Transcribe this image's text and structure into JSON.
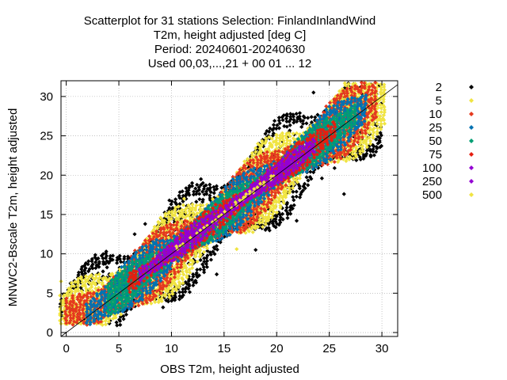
{
  "chart_data": {
    "type": "scatter",
    "title_lines": [
      "Scatterplot for   31 stations Selection: FinlandInlandWind",
      "T2m, height adjusted [deg C]",
      "Period: 20240601-20240630",
      "Used 00,03,...,21 + 00 01 ... 12"
    ],
    "xlabel": "OBS T2m, height adjusted",
    "ylabel": "MNWC2-Bscale T2m, height adjusted",
    "xlim": [
      -0.5,
      31.5
    ],
    "ylim": [
      -0.5,
      32
    ],
    "xticks": [
      0,
      5,
      10,
      15,
      20,
      25,
      30
    ],
    "yticks": [
      0,
      5,
      10,
      15,
      20,
      25,
      30
    ],
    "grid": true,
    "legend_placement": "right",
    "diagonal_line": true,
    "legend": [
      {
        "label": "2",
        "color": "#000000"
      },
      {
        "label": "5",
        "color": "#f0e442"
      },
      {
        "label": "10",
        "color": "#e5391f"
      },
      {
        "label": "25",
        "color": "#0072b2"
      },
      {
        "label": "50",
        "color": "#009e73"
      },
      {
        "label": "75",
        "color": "#e51e10"
      },
      {
        "label": "100",
        "color": "#9400d3"
      },
      {
        "label": "250",
        "color": "#9400d3"
      },
      {
        "label": "500",
        "color": "#f0e442"
      }
    ],
    "density_bands": [
      {
        "label": "2",
        "color": "#000000",
        "center_offset": 0.3,
        "halfwidth": 6.0,
        "x_range": [
          -0.5,
          30.0
        ],
        "points": [
          [
            7.5,
            13.8
          ],
          [
            9.8,
            16.8
          ],
          [
            6.5,
            12.5
          ],
          [
            21.9,
            14.2
          ],
          [
            24.3,
            19.6
          ],
          [
            25.5,
            20.9
          ],
          [
            26.4,
            17.6
          ],
          [
            18.0,
            10.5
          ],
          [
            14.3,
            7.4
          ],
          [
            9.2,
            3.2
          ],
          [
            4.0,
            2.9
          ],
          [
            3.1,
            1.9
          ],
          [
            3.8,
            10.3
          ],
          [
            12.8,
            19.5
          ],
          [
            19.8,
            26.9
          ],
          [
            23.5,
            30.5
          ],
          [
            27.0,
            22.8
          ]
        ]
      },
      {
        "label": "5",
        "color": "#f0e442",
        "center_offset": 0.3,
        "halfwidth": 4.8,
        "x_range": [
          -0.5,
          30.5
        ],
        "points": [
          [
            16.2,
            10.6
          ],
          [
            11.2,
            17.0
          ],
          [
            4.7,
            1.9
          ],
          [
            5.2,
            2.3
          ],
          [
            -0.5,
            6.5
          ],
          [
            29.4,
            29.8
          ]
        ]
      },
      {
        "label": "10",
        "color": "#e5391f",
        "center_offset": 0.3,
        "halfwidth": 3.7,
        "x_range": [
          0.0,
          29.5
        ],
        "points": []
      },
      {
        "label": "25",
        "color": "#0072b2",
        "center_offset": 0.3,
        "halfwidth": 2.9,
        "x_range": [
          2.0,
          28.5
        ],
        "points": []
      },
      {
        "label": "50",
        "color": "#009e73",
        "center_offset": 0.3,
        "halfwidth": 2.1,
        "x_range": [
          4.0,
          27.5
        ],
        "points": []
      },
      {
        "label": "75",
        "color": "#e51e10",
        "center_offset": 0.3,
        "halfwidth": 1.6,
        "x_range": [
          6.0,
          25.5
        ],
        "points": []
      },
      {
        "label": "100",
        "color": "#9400d3",
        "center_offset": 0.3,
        "halfwidth": 1.2,
        "x_range": [
          7.0,
          23.5
        ],
        "points": []
      },
      {
        "label": "250",
        "color": "#9400d3",
        "center_offset": 0.3,
        "halfwidth": 0.7,
        "x_range": [
          9.0,
          21.5
        ],
        "points": []
      },
      {
        "label": "500",
        "color": "#f0e442",
        "center_offset": 0.3,
        "halfwidth": 0.18,
        "x_range": [
          10.5,
          20.0
        ],
        "points": []
      }
    ]
  }
}
